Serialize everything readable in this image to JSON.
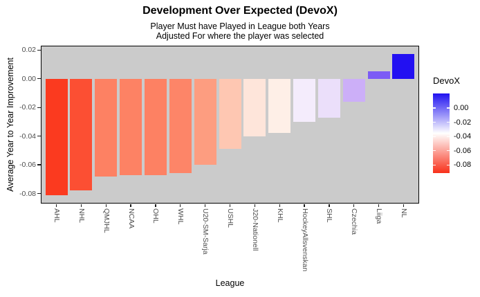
{
  "chart_data": {
    "type": "bar",
    "title": "Development Over Expected (DevoX)",
    "subtitle_lines": [
      "Player Must have Played in League both Years",
      "Adjusted For where the player was selected"
    ],
    "xlabel": "League",
    "ylabel": "Average Year to Year Improvement",
    "categories": [
      "AHL",
      "NHL",
      "QMJHL",
      "NCAA",
      "OHL",
      "WHL",
      "U20-SM-Sarja",
      "USHL",
      "J20-Nationell",
      "KHL",
      "HockeyAllsvenskan",
      "SHL",
      "Czechia",
      "Liiga",
      "NL"
    ],
    "values": [
      -0.081,
      -0.078,
      -0.068,
      -0.067,
      -0.067,
      -0.066,
      -0.06,
      -0.049,
      -0.04,
      -0.038,
      -0.03,
      -0.027,
      -0.016,
      0.005,
      0.017
    ],
    "bar_colors": [
      "#FB3A1F",
      "#FC4F33",
      "#FD8163",
      "#FD8264",
      "#FD8163",
      "#FD8568",
      "#FD9D80",
      "#FEC7B2",
      "#FEE5DA",
      "#FEEFE7",
      "#F4ECFC",
      "#EBDFFA",
      "#CCAFF8",
      "#7C5BF5",
      "#2210F2"
    ],
    "yticks": [
      {
        "label": "0.02",
        "value": 0.02
      },
      {
        "label": "0.00",
        "value": 0.0
      },
      {
        "label": "-0.02",
        "value": -0.02
      },
      {
        "label": "-0.04",
        "value": -0.04
      },
      {
        "label": "-0.06",
        "value": -0.06
      },
      {
        "label": "-0.08",
        "value": -0.08
      }
    ],
    "ylim": [
      -0.0865,
      0.0225
    ],
    "grid": false,
    "panel_bg": "#CBCBCB",
    "legend": {
      "title": "DevoX",
      "position": "right",
      "ticks": [
        {
          "label": "0.00",
          "value": 0.0
        },
        {
          "label": "-0.02",
          "value": -0.02
        },
        {
          "label": "-0.04",
          "value": -0.04
        },
        {
          "label": "-0.06",
          "value": -0.06
        },
        {
          "label": "-0.08",
          "value": -0.08
        }
      ],
      "gradient_value_top": 0.0204,
      "gradient_value_bottom": -0.0913,
      "color_high": "#2012F0",
      "color_mid": "#FFFFFF",
      "color_low": "#F8301A"
    }
  }
}
